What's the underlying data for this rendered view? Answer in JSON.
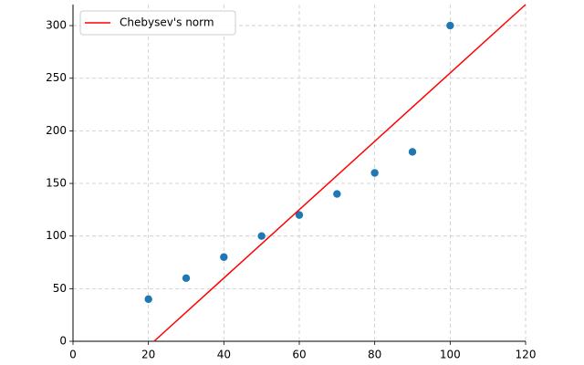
{
  "chart_data": {
    "type": "scatter",
    "series": [
      {
        "type": "scatter",
        "color": "#1f77b4",
        "x": [
          20,
          30,
          40,
          50,
          60,
          70,
          80,
          90,
          100
        ],
        "values": [
          40,
          60,
          80,
          100,
          120,
          140,
          160,
          180,
          300
        ]
      },
      {
        "type": "line",
        "name": "Chebysev's norm",
        "color": "#ff0000",
        "x": [
          21.5,
          120
        ],
        "values": [
          0,
          320
        ]
      }
    ],
    "xlim": [
      0,
      120
    ],
    "xticks": [
      0,
      20,
      40,
      60,
      80,
      100,
      120
    ],
    "ylim": [
      0,
      320
    ],
    "yticks": [
      0,
      50,
      100,
      150,
      200,
      250,
      300
    ],
    "grid": true,
    "legend": "upper left"
  }
}
